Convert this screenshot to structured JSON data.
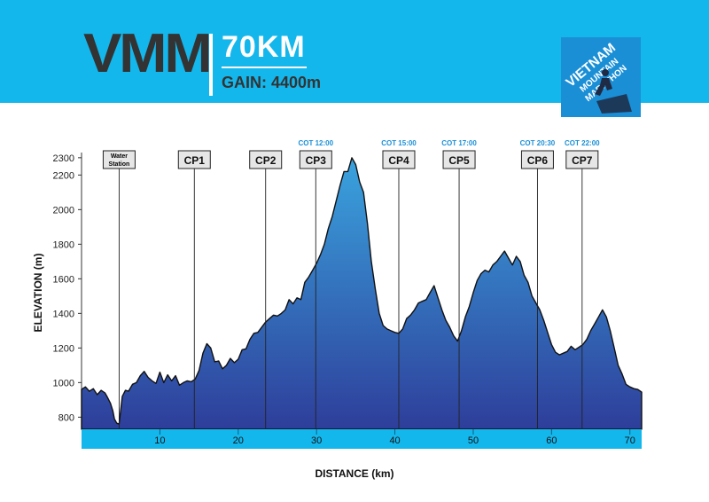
{
  "header": {
    "title": "VMM",
    "distance": "70KM",
    "gain": "GAIN: 4400m",
    "logo": {
      "line1": "VIETNAM",
      "line2": "MOUNTAIN",
      "line3": "MARATHON"
    }
  },
  "colors": {
    "header": "#14b7ec",
    "accent": "#1a8fd6",
    "profile_top": "#3aa3de",
    "profile_bottom": "#2e3e9a"
  },
  "chart_data": {
    "type": "area",
    "title": "",
    "xlabel": "DISTANCE (km)",
    "ylabel": "ELEVATION (m)",
    "xlim": [
      0,
      71.5
    ],
    "ylim": [
      730,
      2330
    ],
    "x_ticks": [
      10,
      20,
      30,
      40,
      50,
      60,
      70
    ],
    "y_ticks": [
      800,
      1000,
      1200,
      1400,
      1600,
      1800,
      2000,
      2200,
      2300
    ],
    "grid": false,
    "series": [
      {
        "x": [
          0,
          0.5,
          1,
          1.5,
          2,
          2.5,
          3,
          3.3,
          3.7,
          4,
          4.2,
          4.5,
          4.8,
          5.2,
          5.6,
          6,
          6.5,
          7,
          7.5,
          8,
          8.5,
          9,
          9.5,
          10,
          10.5,
          11,
          11.5,
          12,
          12.5,
          13,
          13.5,
          14,
          14.5,
          15,
          15.5,
          16,
          16.5,
          17,
          17.5,
          18,
          18.5,
          19,
          19.5,
          20,
          20.5,
          21,
          21.5,
          22,
          22.5,
          23,
          23.5,
          24,
          24.5,
          25,
          25.5,
          26,
          26.5,
          27,
          27.5,
          28,
          28.5,
          29,
          29.5,
          30,
          30.5,
          31,
          31.5,
          32,
          32.5,
          33,
          33.5,
          34,
          34.5,
          35,
          35.5,
          36,
          36.5,
          37,
          37.5,
          38,
          38.5,
          39,
          39.5,
          40,
          40.5,
          41,
          41.5,
          42,
          42.5,
          43,
          43.5,
          44,
          44.5,
          45,
          45.5,
          46,
          46.5,
          47,
          47.5,
          48,
          48.5,
          49,
          49.5,
          50,
          50.5,
          51,
          51.5,
          52,
          52.5,
          53,
          53.5,
          54,
          54.5,
          55,
          55.5,
          56,
          56.5,
          57,
          57.5,
          58,
          58.5,
          59,
          59.5,
          60,
          60.5,
          61,
          61.5,
          62,
          62.5,
          63,
          63.5,
          64,
          64.5,
          65,
          65.5,
          66,
          66.5,
          67,
          67.5,
          68,
          68.5,
          69,
          69.5,
          70,
          70.5,
          71,
          71.5
        ],
        "values": [
          960,
          975,
          950,
          965,
          930,
          955,
          940,
          915,
          880,
          835,
          790,
          765,
          760,
          920,
          955,
          950,
          990,
          1000,
          1040,
          1065,
          1030,
          1010,
          995,
          1060,
          1000,
          1045,
          1010,
          1040,
          985,
          1000,
          1010,
          1005,
          1020,
          1070,
          1170,
          1225,
          1200,
          1120,
          1125,
          1080,
          1100,
          1140,
          1115,
          1135,
          1190,
          1195,
          1250,
          1285,
          1290,
          1320,
          1350,
          1370,
          1390,
          1385,
          1400,
          1420,
          1480,
          1455,
          1490,
          1480,
          1580,
          1610,
          1650,
          1690,
          1740,
          1800,
          1890,
          1960,
          2050,
          2140,
          2220,
          2220,
          2300,
          2260,
          2160,
          2100,
          1920,
          1700,
          1540,
          1400,
          1330,
          1310,
          1300,
          1290,
          1285,
          1310,
          1370,
          1390,
          1420,
          1460,
          1470,
          1480,
          1520,
          1560,
          1490,
          1420,
          1360,
          1320,
          1270,
          1240,
          1300,
          1380,
          1440,
          1520,
          1590,
          1630,
          1650,
          1640,
          1680,
          1700,
          1730,
          1760,
          1720,
          1680,
          1730,
          1700,
          1620,
          1580,
          1500,
          1460,
          1420,
          1360,
          1290,
          1220,
          1175,
          1160,
          1170,
          1180,
          1210,
          1190,
          1205,
          1220,
          1250,
          1300,
          1340,
          1380,
          1420,
          1380,
          1300,
          1200,
          1100,
          1050,
          990,
          975,
          965,
          960,
          945
        ]
      }
    ],
    "checkpoints": [
      {
        "label": "Water Station",
        "line1": "Water",
        "line2": "Station",
        "km": 4.8,
        "cot": ""
      },
      {
        "label": "CP1",
        "km": 14.4,
        "cot": ""
      },
      {
        "label": "CP2",
        "km": 23.5,
        "cot": ""
      },
      {
        "label": "CP3",
        "km": 29.9,
        "cot": "COT 12:00"
      },
      {
        "label": "CP4",
        "km": 40.5,
        "cot": "COT 15:00"
      },
      {
        "label": "CP5",
        "km": 48.2,
        "cot": "COT 17:00"
      },
      {
        "label": "CP6",
        "km": 58.2,
        "cot": "COT 20:30"
      },
      {
        "label": "CP7",
        "km": 63.9,
        "cot": "COT 22:00"
      }
    ]
  }
}
